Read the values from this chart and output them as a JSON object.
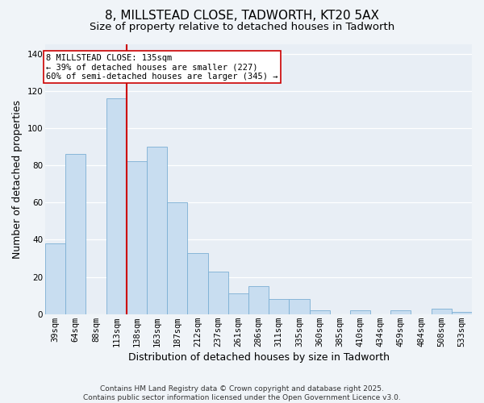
{
  "title": "8, MILLSTEAD CLOSE, TADWORTH, KT20 5AX",
  "subtitle": "Size of property relative to detached houses in Tadworth",
  "xlabel": "Distribution of detached houses by size in Tadworth",
  "ylabel": "Number of detached properties",
  "categories": [
    "39sqm",
    "64sqm",
    "88sqm",
    "113sqm",
    "138sqm",
    "163sqm",
    "187sqm",
    "212sqm",
    "237sqm",
    "261sqm",
    "286sqm",
    "311sqm",
    "335sqm",
    "360sqm",
    "385sqm",
    "410sqm",
    "434sqm",
    "459sqm",
    "484sqm",
    "508sqm",
    "533sqm"
  ],
  "values": [
    38,
    86,
    0,
    116,
    82,
    90,
    60,
    33,
    23,
    11,
    15,
    8,
    8,
    2,
    0,
    2,
    0,
    2,
    0,
    3,
    1
  ],
  "bar_color": "#c8ddf0",
  "bar_edge_color": "#7bafd4",
  "vline_color": "#cc0000",
  "vline_x_index": 3.5,
  "annotation_text": "8 MILLSTEAD CLOSE: 135sqm\n← 39% of detached houses are smaller (227)\n60% of semi-detached houses are larger (345) →",
  "annotation_box_facecolor": "#ffffff",
  "annotation_box_edgecolor": "#cc0000",
  "ylim": [
    0,
    145
  ],
  "yticks": [
    0,
    20,
    40,
    60,
    80,
    100,
    120,
    140
  ],
  "background_color": "#f0f4f8",
  "plot_bg_color": "#e8eef5",
  "grid_color": "#ffffff",
  "footer_text": "Contains HM Land Registry data © Crown copyright and database right 2025.\nContains public sector information licensed under the Open Government Licence v3.0.",
  "title_fontsize": 11,
  "subtitle_fontsize": 9.5,
  "axis_label_fontsize": 9,
  "tick_fontsize": 7.5,
  "annotation_fontsize": 7.5,
  "footer_fontsize": 6.5
}
